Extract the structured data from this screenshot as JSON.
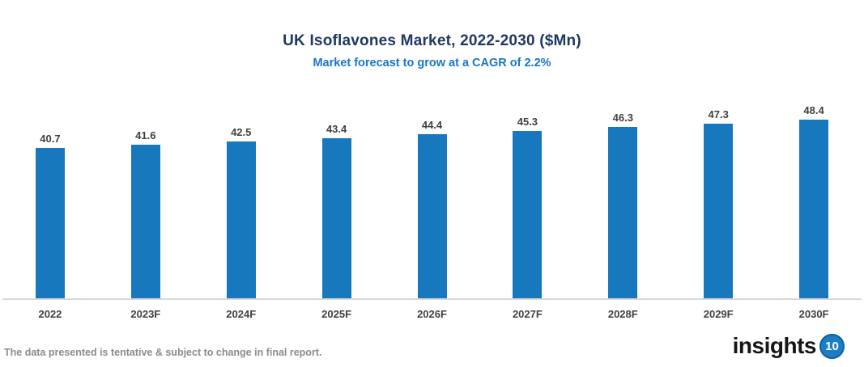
{
  "chart_data": {
    "type": "bar",
    "title": "UK Isoflavones Market, 2022-2030 ($Mn)",
    "subtitle": "Market forecast to grow at a CAGR of 2.2%",
    "categories": [
      "2022",
      "2023F",
      "2024F",
      "2025F",
      "2026F",
      "2027F",
      "2028F",
      "2029F",
      "2030F"
    ],
    "values": [
      40.7,
      41.6,
      42.5,
      43.4,
      44.4,
      45.3,
      46.3,
      47.3,
      48.4
    ],
    "data_labels": [
      40.7,
      41.6,
      42.5,
      43.4,
      44.4,
      45.3,
      46.3,
      47.3,
      48.4
    ],
    "xlabel": "",
    "ylabel": "",
    "ylim": [
      0,
      50
    ],
    "grid": false,
    "legend_position": "none",
    "bar_color": "#1878BD"
  },
  "footer": {
    "disclaimer": "The data presented is tentative & subject to change in final report.",
    "brand": "insights",
    "brand_number": "10"
  },
  "colors": {
    "title": "#1F3864",
    "subtitle": "#1776C8",
    "bar": "#1878BD",
    "axis_line": "#D9D9D9",
    "label_text": "#404040",
    "disclaimer_text": "#8B8B8B",
    "logo_badge": "#1B7EC5"
  }
}
